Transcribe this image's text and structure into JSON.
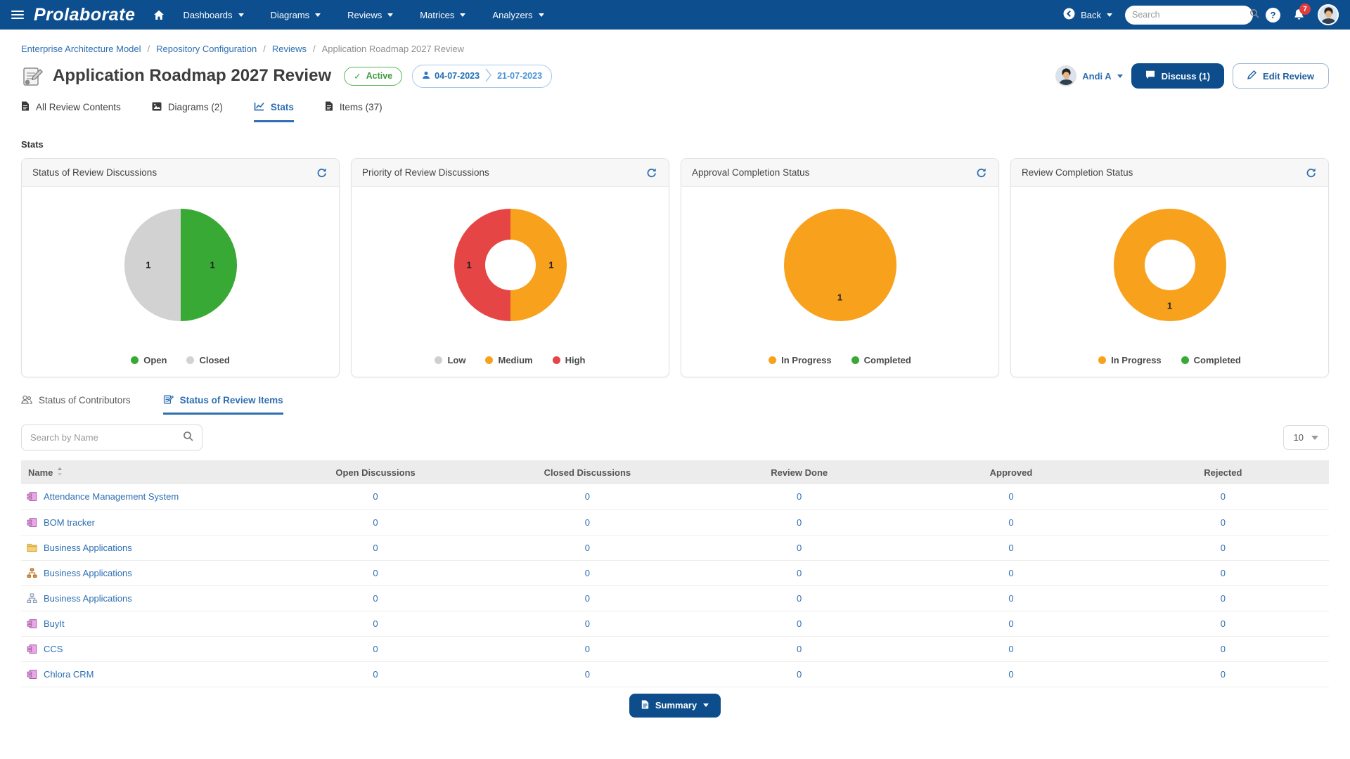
{
  "colors": {
    "navbar": "#0d4e8e",
    "accent_blue": "#2e6fb2",
    "button_navy": "#0d4d8c",
    "green": "#39a935",
    "orange": "#f8a11d",
    "red": "#e64545",
    "gray": "#d2d2d2",
    "badge_red": "#e23c3c"
  },
  "navbar": {
    "brand": "Prolaborate",
    "menu": [
      {
        "label": "Dashboards",
        "caret": true
      },
      {
        "label": "Diagrams",
        "caret": true
      },
      {
        "label": "Reviews",
        "caret": true
      },
      {
        "label": "Matrices",
        "caret": true
      },
      {
        "label": "Analyzers",
        "caret": true
      }
    ],
    "back_label": "Back",
    "search_placeholder": "Search",
    "notification_count": "7"
  },
  "breadcrumb": [
    "Enterprise Architecture Model",
    "Repository Configuration",
    "Reviews",
    "Application Roadmap 2027 Review"
  ],
  "header": {
    "title": "Application Roadmap 2027 Review",
    "status_label": "Active",
    "start_date": "04-07-2023",
    "end_date": "21-07-2023",
    "user_name": "Andi A",
    "discuss_label": "Discuss (1)",
    "edit_label": "Edit Review"
  },
  "tabs": [
    {
      "label": "All Review Contents",
      "icon": "file",
      "active": false
    },
    {
      "label": "Diagrams (2)",
      "icon": "image",
      "active": false
    },
    {
      "label": "Stats",
      "icon": "chart",
      "active": true
    },
    {
      "label": "Items (37)",
      "icon": "file",
      "active": false
    }
  ],
  "stats_heading": "Stats",
  "chart_data": [
    {
      "type": "pie",
      "title": "Status of Review Discussions",
      "segments": [
        {
          "label": "Open",
          "value": 1,
          "color": "#39a935"
        },
        {
          "label": "Closed",
          "value": 1,
          "color": "#d2d2d2"
        }
      ]
    },
    {
      "type": "donut",
      "title": "Priority of Review Discussions",
      "segments": [
        {
          "label": "Low",
          "value": 0,
          "color": "#cfcfcf"
        },
        {
          "label": "Medium",
          "value": 1,
          "color": "#f8a11d"
        },
        {
          "label": "High",
          "value": 1,
          "color": "#e64545"
        }
      ]
    },
    {
      "type": "pie",
      "title": "Approval Completion Status",
      "segments": [
        {
          "label": "In Progress",
          "value": 1,
          "color": "#f8a11d"
        },
        {
          "label": "Completed",
          "value": 0,
          "color": "#39a935"
        }
      ]
    },
    {
      "type": "donut",
      "title": "Review Completion Status",
      "segments": [
        {
          "label": "In Progress",
          "value": 1,
          "color": "#f8a11d"
        },
        {
          "label": "Completed",
          "value": 0,
          "color": "#39a935"
        }
      ]
    }
  ],
  "subtabs": [
    {
      "label": "Status of Contributors",
      "icon": "people",
      "active": false
    },
    {
      "label": "Status of Review Items",
      "icon": "review",
      "active": true
    }
  ],
  "toolbar": {
    "search_placeholder": "Search by Name",
    "page_size": "10"
  },
  "table": {
    "headers": [
      "Name",
      "Open Discussions",
      "Closed Discussions",
      "Review Done",
      "Approved",
      "Rejected"
    ],
    "rows": [
      {
        "icon": "component",
        "name": "Attendance Management System",
        "values": [
          "0",
          "0",
          "0",
          "0",
          "0"
        ]
      },
      {
        "icon": "component",
        "name": "BOM tracker",
        "values": [
          "0",
          "0",
          "0",
          "0",
          "0"
        ]
      },
      {
        "icon": "folder",
        "name": "Business Applications",
        "values": [
          "0",
          "0",
          "0",
          "0",
          "0"
        ]
      },
      {
        "icon": "hierarchy",
        "name": "Business Applications",
        "values": [
          "0",
          "0",
          "0",
          "0",
          "0"
        ]
      },
      {
        "icon": "diagram",
        "name": "Business Applications",
        "values": [
          "0",
          "0",
          "0",
          "0",
          "0"
        ]
      },
      {
        "icon": "component",
        "name": "BuyIt",
        "values": [
          "0",
          "0",
          "0",
          "0",
          "0"
        ]
      },
      {
        "icon": "component",
        "name": "CCS",
        "values": [
          "0",
          "0",
          "0",
          "0",
          "0"
        ]
      },
      {
        "icon": "component",
        "name": "Chlora CRM",
        "values": [
          "0",
          "0",
          "0",
          "0",
          "0"
        ]
      }
    ]
  },
  "footer": {
    "summary_label": "Summary"
  }
}
